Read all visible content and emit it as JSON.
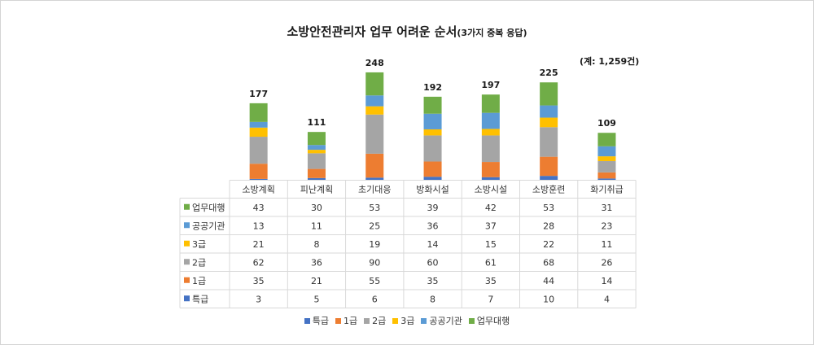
{
  "chart_data": {
    "type": "bar",
    "stacked": true,
    "title": "소방안전관리자 업무 어려운 순서",
    "subtitle": "(3가지 중복 응답)",
    "total_note": "(계: 1,259건)",
    "categories": [
      "소방계획",
      "피난계획",
      "초기대응",
      "방화시설",
      "소방시설",
      "소방훈련",
      "화기취급"
    ],
    "totals": [
      177,
      111,
      248,
      192,
      197,
      225,
      109
    ],
    "series": [
      {
        "name": "특급",
        "color": "#4472C4",
        "values": [
          3,
          5,
          6,
          8,
          7,
          10,
          4
        ]
      },
      {
        "name": "1급",
        "color": "#ED7D31",
        "values": [
          35,
          21,
          55,
          35,
          35,
          44,
          14
        ]
      },
      {
        "name": "2급",
        "color": "#A5A5A5",
        "values": [
          62,
          36,
          90,
          60,
          61,
          68,
          26
        ]
      },
      {
        "name": "3급",
        "color": "#FFC000",
        "values": [
          21,
          8,
          19,
          14,
          15,
          22,
          11
        ]
      },
      {
        "name": "공공기관",
        "color": "#5B9BD5",
        "values": [
          13,
          11,
          25,
          36,
          37,
          28,
          23
        ]
      },
      {
        "name": "업무대행",
        "color": "#70AD47",
        "values": [
          43,
          30,
          53,
          39,
          42,
          53,
          31
        ]
      }
    ],
    "table_row_order": [
      "업무대행",
      "공공기관",
      "3급",
      "2급",
      "1급",
      "특급"
    ],
    "legend_position": "bottom",
    "ylim": [
      0,
      260
    ]
  }
}
